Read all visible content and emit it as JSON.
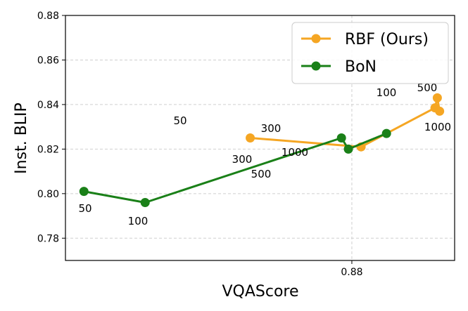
{
  "chart_data": {
    "type": "line",
    "xlabel": "VQAScore",
    "ylabel": "Inst. BLIP",
    "xlim": [
      0.8552,
      0.8889
    ],
    "ylim": [
      0.77,
      0.88
    ],
    "xticks": [
      {
        "value": 0.88,
        "label": "0.88"
      }
    ],
    "yticks": [
      {
        "value": 0.78,
        "label": "0.78"
      },
      {
        "value": 0.8,
        "label": "0.80"
      },
      {
        "value": 0.82,
        "label": "0.82"
      },
      {
        "value": 0.84,
        "label": "0.84"
      },
      {
        "value": 0.86,
        "label": "0.86"
      },
      {
        "value": 0.88,
        "label": "0.88"
      }
    ],
    "grid": true,
    "legend_position": "top-right",
    "series": [
      {
        "name": "RBF (Ours)",
        "color": "#f5a623",
        "points": [
          {
            "x": 0.8712,
            "y": 0.825,
            "label": "50"
          },
          {
            "x": 0.8808,
            "y": 0.821,
            "label": "300"
          },
          {
            "x": 0.8872,
            "y": 0.8385,
            "label": "300"
          },
          {
            "x": 0.8874,
            "y": 0.843,
            "label": "500"
          },
          {
            "x": 0.8876,
            "y": 0.837,
            "label": "1000"
          }
        ]
      },
      {
        "name": "BoN",
        "color": "#1a8018",
        "points": [
          {
            "x": 0.8568,
            "y": 0.801,
            "label": "50"
          },
          {
            "x": 0.8621,
            "y": 0.796,
            "label": "100"
          },
          {
            "x": 0.8791,
            "y": 0.825,
            "label": "300"
          },
          {
            "x": 0.8797,
            "y": 0.82,
            "label": "500"
          },
          {
            "x": 0.883,
            "y": 0.827,
            "label": "100"
          }
        ]
      }
    ],
    "point_labels": [
      "50",
      "300",
      "500",
      "1000",
      "50",
      "100",
      "300",
      "100",
      "500",
      "1000"
    ]
  }
}
